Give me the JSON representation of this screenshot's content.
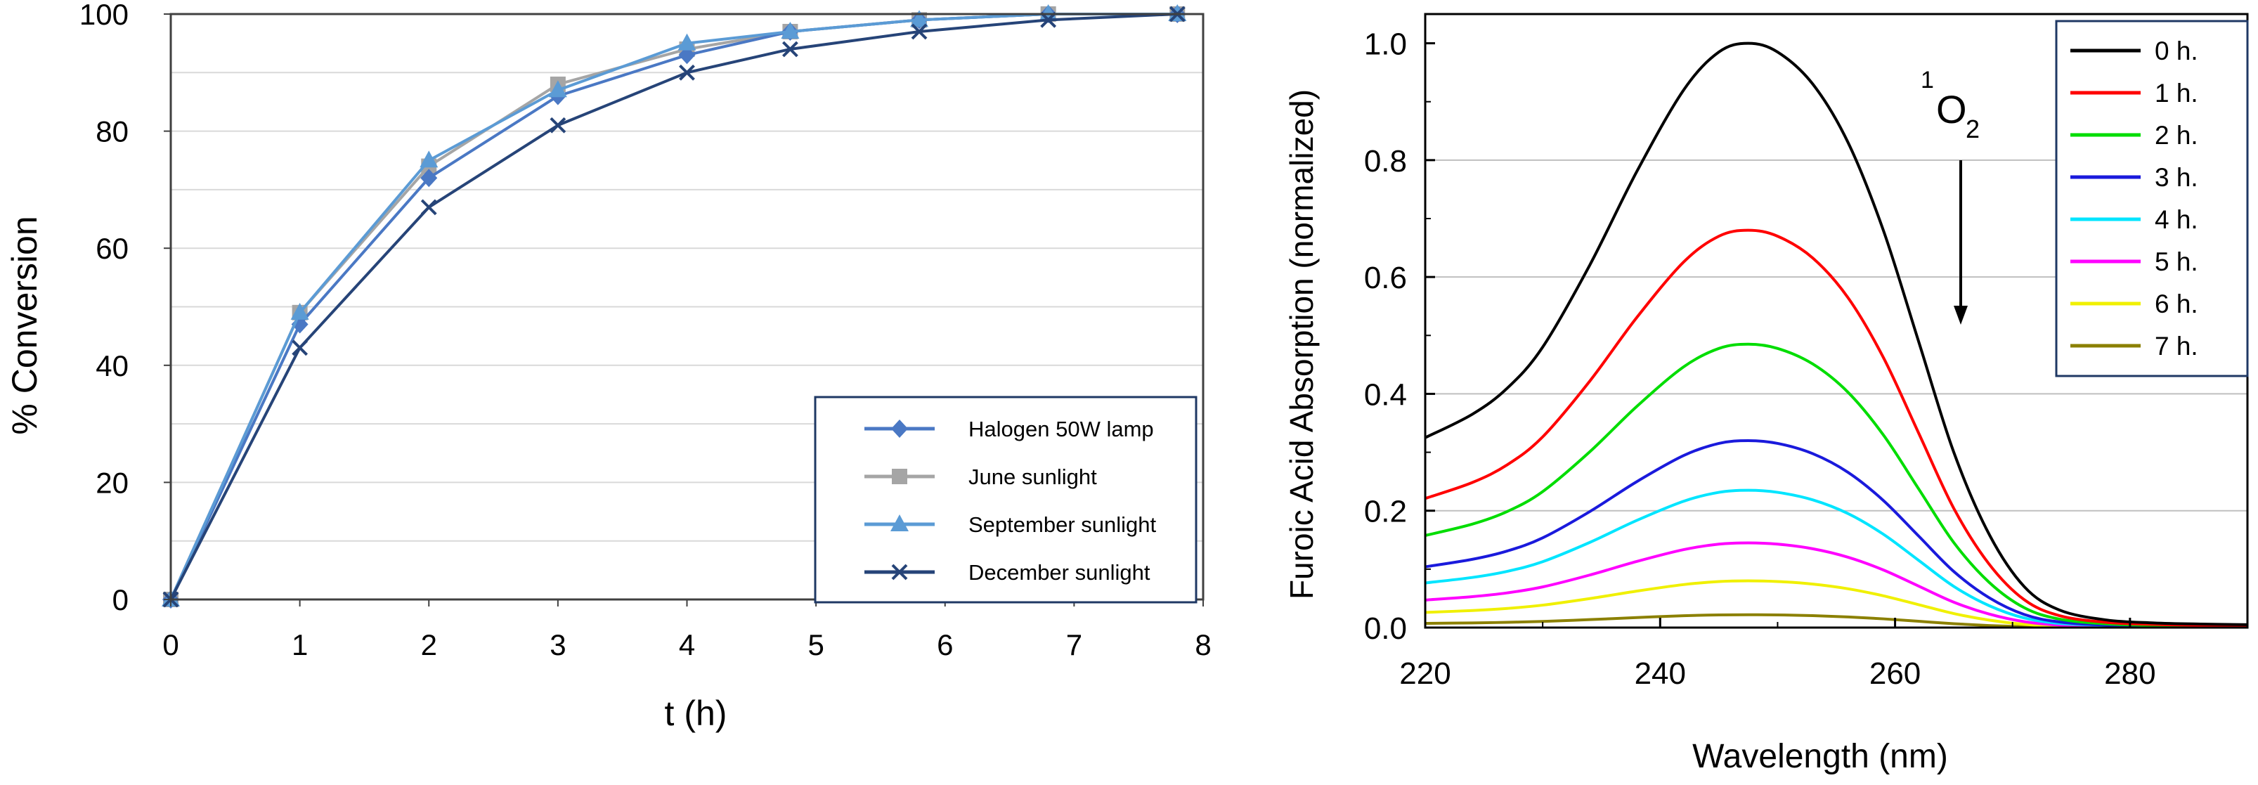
{
  "chart_data": [
    {
      "type": "line",
      "xlabel": "t (h)",
      "ylabel": "% Conversion",
      "xlim": [
        0,
        8
      ],
      "ylim": [
        0,
        100
      ],
      "x_ticks": [
        0,
        1,
        2,
        3,
        4,
        5,
        6,
        7,
        8
      ],
      "y_ticks": [
        0,
        20,
        40,
        60,
        80,
        100
      ],
      "grid": "horizontal",
      "legend_position": "bottom-right",
      "series": [
        {
          "name": "Halogen 50W lamp",
          "color": "#4a78c4",
          "marker": "diamond",
          "x": [
            0,
            1,
            2,
            3,
            4,
            4.8,
            5.8,
            6.8,
            7.8
          ],
          "y": [
            0,
            47,
            72,
            86,
            93,
            97,
            99,
            100,
            100
          ]
        },
        {
          "name": "June sunlight",
          "color": "#a5a5a5",
          "marker": "square",
          "x": [
            0,
            1,
            2,
            3,
            4,
            4.8,
            5.8,
            6.8,
            7.8
          ],
          "y": [
            0,
            49,
            74,
            88,
            94,
            97,
            99,
            100,
            100
          ]
        },
        {
          "name": "September sunlight",
          "color": "#5b9bd5",
          "marker": "triangle",
          "x": [
            0,
            1,
            2,
            3,
            4,
            4.8,
            5.8,
            6.8,
            7.8
          ],
          "y": [
            0,
            49,
            75,
            87,
            95,
            97,
            99,
            100,
            100
          ]
        },
        {
          "name": "December sunlight",
          "color": "#264478",
          "marker": "x",
          "x": [
            0,
            1,
            2,
            3,
            4,
            4.8,
            5.8,
            6.8,
            7.8
          ],
          "y": [
            0,
            43,
            67,
            81,
            90,
            94,
            97,
            99,
            100
          ]
        }
      ]
    },
    {
      "type": "line",
      "xlabel": "Wavelength (nm)",
      "ylabel": "Furoic Acid Absorption (normalized)",
      "xlim": [
        220,
        290
      ],
      "ylim": [
        0,
        1.05
      ],
      "x_ticks": [
        220,
        240,
        260,
        280
      ],
      "y_ticks": [
        0.0,
        0.2,
        0.4,
        0.6,
        0.8,
        1.0
      ],
      "y_tick_labels": [
        "0.0",
        "0.2",
        "0.4",
        "0.6",
        "0.8",
        "1.0"
      ],
      "grid": "horizontal",
      "legend_position": "top-right",
      "annotation": {
        "text": "O",
        "superscript": "1",
        "subscript": "2",
        "arrow": "down"
      },
      "wavelengths": [
        220,
        224,
        227,
        230,
        234,
        238,
        242,
        245,
        247.5,
        250,
        253,
        256,
        259,
        262,
        265,
        268,
        271,
        274,
        278,
        282,
        286,
        290
      ],
      "shape": [
        0.325,
        0.365,
        0.41,
        0.48,
        0.62,
        0.78,
        0.92,
        0.985,
        1.0,
        0.985,
        0.93,
        0.83,
        0.68,
        0.49,
        0.3,
        0.16,
        0.07,
        0.03,
        0.013,
        0.008,
        0.006,
        0.005
      ],
      "series": [
        {
          "name": "0 h.",
          "color": "#000000",
          "scale": 1.0
        },
        {
          "name": "1 h.",
          "color": "#ff0000",
          "scale": 0.68
        },
        {
          "name": "2 h.",
          "color": "#00dd00",
          "scale": 0.485
        },
        {
          "name": "3 h.",
          "color": "#1a1adc",
          "scale": 0.32
        },
        {
          "name": "4 h.",
          "color": "#00e5ff",
          "scale": 0.235
        },
        {
          "name": "5 h.",
          "color": "#ff00ff",
          "scale": 0.145
        },
        {
          "name": "6 h.",
          "color": "#f0f000",
          "scale": 0.08
        },
        {
          "name": "7 h.",
          "color": "#8b8000",
          "scale": 0.022
        }
      ]
    }
  ]
}
